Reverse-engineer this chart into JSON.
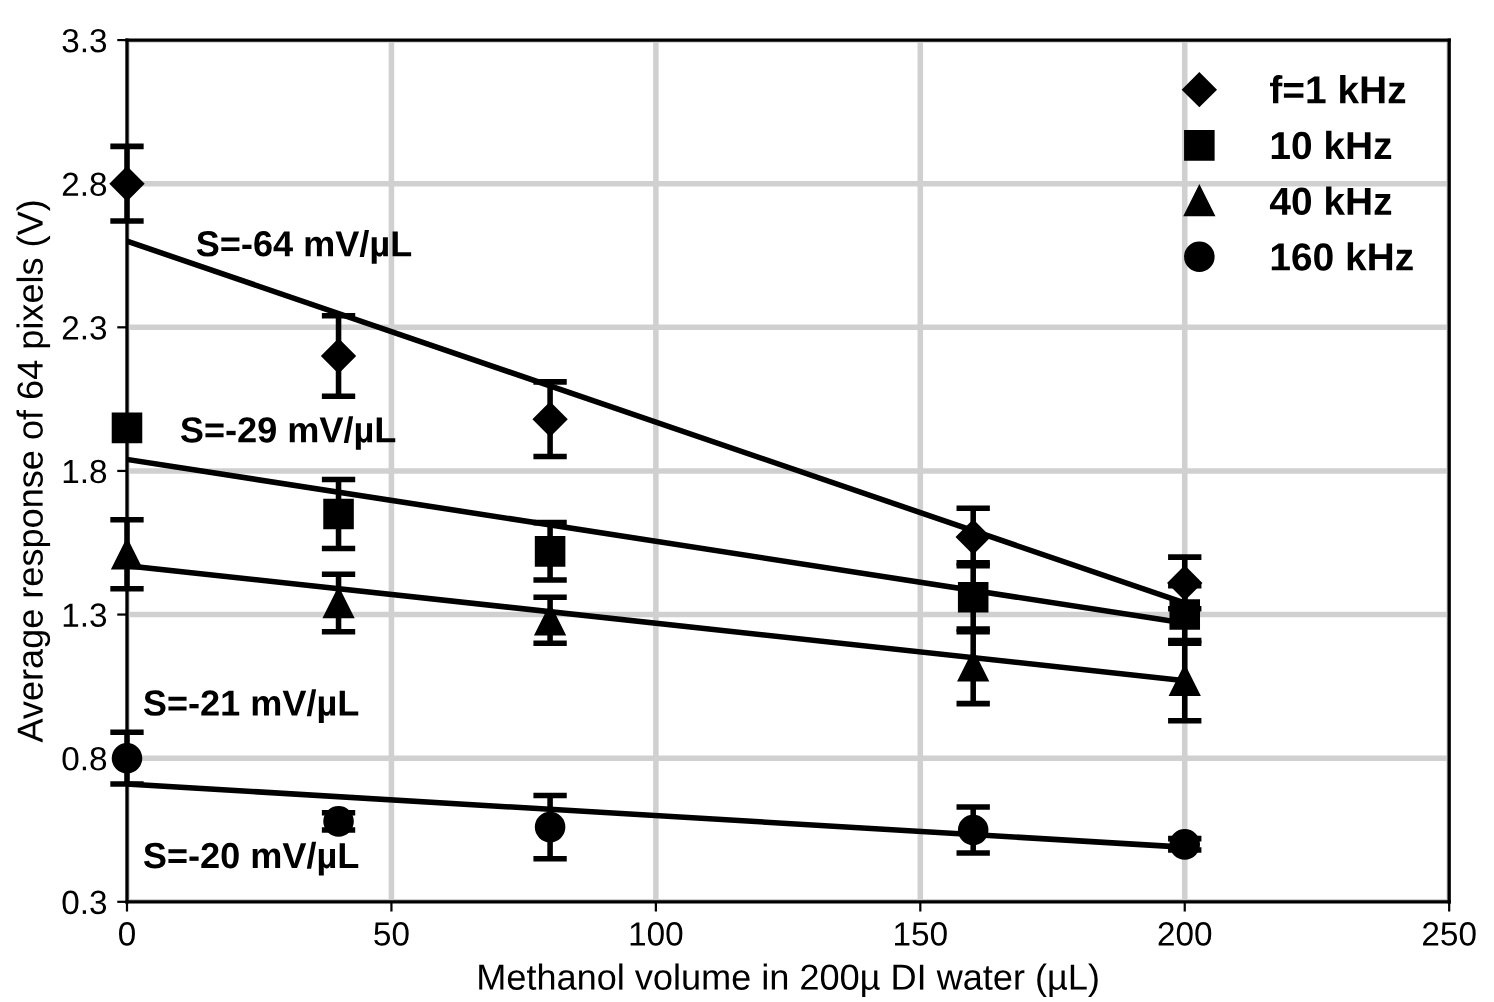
{
  "chart_data": {
    "type": "scatter",
    "xlabel": "Methanol volume in 200µ DI water (µL)",
    "ylabel": "Average response of 64 pixels (V)",
    "x": [
      0,
      40,
      80,
      160,
      200
    ],
    "series": [
      {
        "name": "f=1 kHz",
        "color": "#000000",
        "marker": "diamond",
        "values": [
          2.8,
          2.2,
          1.98,
          1.57,
          1.41
        ],
        "errors": [
          0.13,
          0.14,
          0.13,
          0.1,
          0.09
        ]
      },
      {
        "name": "10 kHz",
        "color": "#000000",
        "marker": "square",
        "values": [
          1.95,
          1.65,
          1.52,
          1.36,
          1.3
        ],
        "errors": [
          null,
          0.12,
          0.1,
          0.12,
          0.1
        ]
      },
      {
        "name": "40 kHz",
        "color": "#000000",
        "marker": "triangle",
        "values": [
          1.51,
          1.34,
          1.28,
          1.12,
          1.07
        ],
        "errors": [
          0.12,
          0.1,
          0.08,
          0.13,
          0.14
        ]
      },
      {
        "name": "160 kHz",
        "color": "#000000",
        "marker": "circle",
        "values": [
          0.8,
          0.58,
          0.56,
          0.55,
          0.5
        ],
        "errors": [
          0.09,
          0.03,
          0.11,
          0.08,
          0.02
        ]
      },
      {
        "type": "line",
        "color": "#000000",
        "values": [
          2.6,
          null,
          null,
          null,
          1.34
        ]
      },
      {
        "type": "line",
        "color": "#000000",
        "values": [
          1.84,
          null,
          null,
          null,
          1.27
        ]
      },
      {
        "type": "line",
        "color": "#000000",
        "values": [
          1.47,
          null,
          null,
          null,
          1.07
        ]
      },
      {
        "type": "line",
        "color": "#000000",
        "values": [
          0.71,
          null,
          null,
          null,
          0.49
        ]
      }
    ],
    "annotations": [
      "S=-64 mV/µL",
      "S=-29 mV/µL",
      "S=-21 mV/µL",
      "S=-20 mV/µL"
    ],
    "xlim": [
      0,
      250
    ],
    "xticks": [
      0,
      50,
      100,
      150,
      200,
      250
    ],
    "ylim": [
      0.3,
      3.3
    ],
    "yticks": [
      0.3,
      0.8,
      1.3,
      1.8,
      2.3,
      2.8,
      3.3
    ],
    "grid": true,
    "legend": "top right"
  }
}
